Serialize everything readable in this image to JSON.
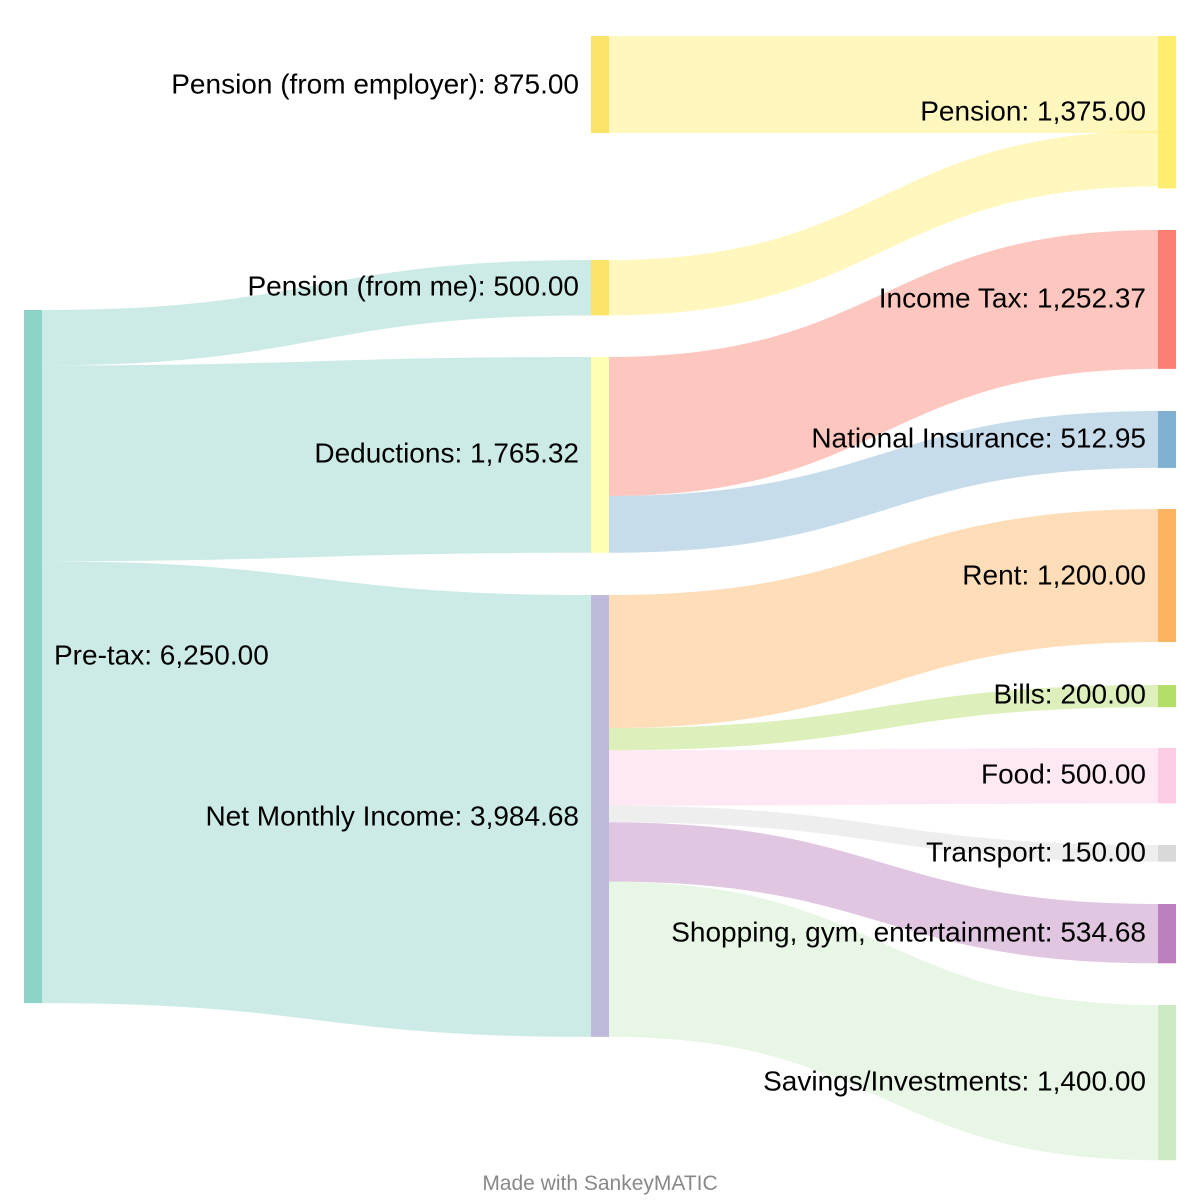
{
  "chart_data": {
    "type": "sankey",
    "nodes": [
      {
        "id": "pretax",
        "label": "Pre-tax: 6,250.00",
        "value": 6250.0,
        "color": "#8dd3c7",
        "column": 0
      },
      {
        "id": "pension_employer",
        "label": "Pension (from employer): 875.00",
        "value": 875.0,
        "color": "#fbe36a",
        "column": 1
      },
      {
        "id": "pension_me",
        "label": "Pension (from me): 500.00",
        "value": 500.0,
        "color": "#fbe36a",
        "column": 1
      },
      {
        "id": "deductions",
        "label": "Deductions: 1,765.32",
        "value": 1765.32,
        "color": "#ffffb3",
        "column": 1
      },
      {
        "id": "net",
        "label": "Net Monthly Income: 3,984.68",
        "value": 3984.68,
        "color": "#bebada",
        "column": 1
      },
      {
        "id": "pension",
        "label": "Pension: 1,375.00",
        "value": 1375.0,
        "color": "#ffed6f",
        "column": 2
      },
      {
        "id": "income_tax",
        "label": "Income Tax: 1,252.37",
        "value": 1252.37,
        "color": "#fb8072",
        "column": 2
      },
      {
        "id": "ni",
        "label": "National Insurance: 512.95",
        "value": 512.95,
        "color": "#80b1d3",
        "column": 2
      },
      {
        "id": "rent",
        "label": "Rent: 1,200.00",
        "value": 1200.0,
        "color": "#fdb462",
        "column": 2
      },
      {
        "id": "bills",
        "label": "Bills: 200.00",
        "value": 200.0,
        "color": "#b3de69",
        "column": 2
      },
      {
        "id": "food",
        "label": "Food: 500.00",
        "value": 500.0,
        "color": "#fccde5",
        "column": 2
      },
      {
        "id": "transport",
        "label": "Transport: 150.00",
        "value": 150.0,
        "color": "#d9d9d9",
        "column": 2
      },
      {
        "id": "shopping",
        "label": "Shopping, gym, entertainment: 534.68",
        "value": 534.68,
        "color": "#bc80bd",
        "column": 2
      },
      {
        "id": "savings",
        "label": "Savings/Investments: 1,400.00",
        "value": 1400.0,
        "color": "#ccebc5",
        "column": 2
      }
    ],
    "links": [
      {
        "source": "pretax",
        "target": "pension_me",
        "value": 500.0
      },
      {
        "source": "pretax",
        "target": "deductions",
        "value": 1765.32
      },
      {
        "source": "pretax",
        "target": "net",
        "value": 3984.68
      },
      {
        "source": "pension_employer",
        "target": "pension",
        "value": 875.0
      },
      {
        "source": "pension_me",
        "target": "pension",
        "value": 500.0
      },
      {
        "source": "deductions",
        "target": "income_tax",
        "value": 1252.37
      },
      {
        "source": "deductions",
        "target": "ni",
        "value": 512.95
      },
      {
        "source": "net",
        "target": "rent",
        "value": 1200.0
      },
      {
        "source": "net",
        "target": "bills",
        "value": 200.0
      },
      {
        "source": "net",
        "target": "food",
        "value": 500.0
      },
      {
        "source": "net",
        "target": "transport",
        "value": 150.0
      },
      {
        "source": "net",
        "target": "shopping",
        "value": 534.68
      },
      {
        "source": "net",
        "target": "savings",
        "value": 1400.0
      }
    ]
  },
  "footer": {
    "credit": "Made with SankeyMATIC"
  }
}
